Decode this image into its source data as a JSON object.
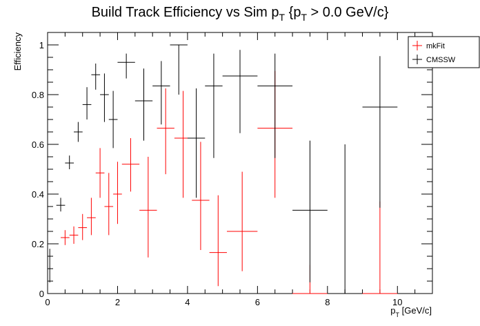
{
  "chart_data": {
    "type": "scatter",
    "title": {
      "main": "Build Track Efficiency vs Sim p",
      "sub1": "T",
      "mid": " {p",
      "sub2": "T",
      "tail": " > 0.0 GeV/c}"
    },
    "xlabel": {
      "main": "p",
      "sub": "T",
      "tail": " [GeV/c]"
    },
    "ylabel": "Efficiency",
    "xlim": [
      0,
      11
    ],
    "ylim": [
      0,
      1.05
    ],
    "xticks": [
      0,
      2,
      4,
      6,
      8,
      10
    ],
    "yticks": [
      0,
      0.2,
      0.4,
      0.6,
      0.8,
      1
    ],
    "ytick_labels": [
      "0",
      "0.2",
      "0.4",
      "0.6",
      "0.8",
      "1"
    ],
    "legend": {
      "position": "top-right",
      "entries": [
        {
          "label": "mkFit",
          "color": "#ff0000"
        },
        {
          "label": "CMSSW",
          "color": "#000000"
        }
      ]
    },
    "series": [
      {
        "name": "mkFit",
        "color": "#ff0000",
        "points": [
          {
            "x0": 0.375,
            "x1": 0.625,
            "y": 0.225,
            "ylo": 0.195,
            "yhi": 0.255
          },
          {
            "x0": 0.625,
            "x1": 0.875,
            "y": 0.235,
            "ylo": 0.2,
            "yhi": 0.27
          },
          {
            "x0": 0.875,
            "x1": 1.125,
            "y": 0.265,
            "ylo": 0.215,
            "yhi": 0.32
          },
          {
            "x0": 1.125,
            "x1": 1.375,
            "y": 0.305,
            "ylo": 0.235,
            "yhi": 0.385
          },
          {
            "x0": 1.375,
            "x1": 1.625,
            "y": 0.485,
            "ylo": 0.385,
            "yhi": 0.585
          },
          {
            "x0": 1.625,
            "x1": 1.875,
            "y": 0.35,
            "ylo": 0.235,
            "yhi": 0.485
          },
          {
            "x0": 1.875,
            "x1": 2.125,
            "y": 0.4,
            "ylo": 0.28,
            "yhi": 0.53
          },
          {
            "x0": 2.125,
            "x1": 2.625,
            "y": 0.52,
            "ylo": 0.41,
            "yhi": 0.625
          },
          {
            "x0": 2.625,
            "x1": 3.125,
            "y": 0.335,
            "ylo": 0.145,
            "yhi": 0.55
          },
          {
            "x0": 3.125,
            "x1": 3.625,
            "y": 0.665,
            "ylo": 0.48,
            "yhi": 0.825
          },
          {
            "x0": 3.625,
            "x1": 4.125,
            "y": 0.625,
            "ylo": 0.385,
            "yhi": 0.815
          },
          {
            "x0": 4.125,
            "x1": 4.625,
            "y": 0.375,
            "ylo": 0.175,
            "yhi": 0.61
          },
          {
            "x0": 4.625,
            "x1": 5.125,
            "y": 0.165,
            "ylo": 0.03,
            "yhi": 0.395
          },
          {
            "x0": 5.125,
            "x1": 6.0,
            "y": 0.25,
            "ylo": 0.09,
            "yhi": 0.49
          },
          {
            "x0": 6.0,
            "x1": 7.0,
            "y": 0.665,
            "ylo": 0.385,
            "yhi": 0.895
          },
          {
            "x0": 7.0,
            "x1": 8.0,
            "y": 0.0,
            "ylo": 0.0,
            "yhi": 0.115
          },
          {
            "x0": 9.0,
            "x1": 10.0,
            "y": 0.0,
            "ylo": 0.0,
            "yhi": 0.37
          }
        ]
      },
      {
        "name": "CMSSW",
        "color": "#000000",
        "points": [
          {
            "x0": 0.0,
            "x1": 0.125,
            "y": 0.1,
            "ylo": 0.045,
            "yhi": 0.18
          },
          {
            "x0": 0.25,
            "x1": 0.5,
            "y": 0.355,
            "ylo": 0.33,
            "yhi": 0.385
          },
          {
            "x0": 0.5,
            "x1": 0.75,
            "y": 0.525,
            "ylo": 0.5,
            "yhi": 0.555
          },
          {
            "x0": 0.75,
            "x1": 1.0,
            "y": 0.65,
            "ylo": 0.61,
            "yhi": 0.69
          },
          {
            "x0": 1.0,
            "x1": 1.25,
            "y": 0.76,
            "ylo": 0.7,
            "yhi": 0.83
          },
          {
            "x0": 1.25,
            "x1": 1.5,
            "y": 0.88,
            "ylo": 0.82,
            "yhi": 0.925
          },
          {
            "x0": 1.5,
            "x1": 1.75,
            "y": 0.8,
            "ylo": 0.69,
            "yhi": 0.885
          },
          {
            "x0": 1.75,
            "x1": 2.0,
            "y": 0.7,
            "ylo": 0.585,
            "yhi": 0.815
          },
          {
            "x0": 2.0,
            "x1": 2.5,
            "y": 0.93,
            "ylo": 0.865,
            "yhi": 0.965
          },
          {
            "x0": 2.5,
            "x1": 3.0,
            "y": 0.775,
            "ylo": 0.615,
            "yhi": 0.905
          },
          {
            "x0": 3.0,
            "x1": 3.5,
            "y": 0.835,
            "ylo": 0.68,
            "yhi": 0.935
          },
          {
            "x0": 3.5,
            "x1": 4.0,
            "y": 1.0,
            "ylo": 0.8,
            "yhi": 1.0
          },
          {
            "x0": 4.0,
            "x1": 4.5,
            "y": 0.625,
            "ylo": 0.385,
            "yhi": 0.825
          },
          {
            "x0": 4.5,
            "x1": 5.0,
            "y": 0.835,
            "ylo": 0.545,
            "yhi": 0.965
          },
          {
            "x0": 5.0,
            "x1": 6.0,
            "y": 0.875,
            "ylo": 0.645,
            "yhi": 0.98
          },
          {
            "x0": 6.0,
            "x1": 7.0,
            "y": 0.835,
            "ylo": 0.545,
            "yhi": 0.965
          },
          {
            "x0": 7.0,
            "x1": 8.0,
            "y": 0.335,
            "ylo": 0.045,
            "yhi": 0.615
          },
          {
            "x0": 8.0,
            "x1": 9.0,
            "y": 0.0,
            "ylo": 0.0,
            "yhi": 0.6
          },
          {
            "x0": 9.0,
            "x1": 10.0,
            "y": 0.75,
            "ylo": 0.345,
            "yhi": 0.955
          }
        ]
      }
    ]
  }
}
